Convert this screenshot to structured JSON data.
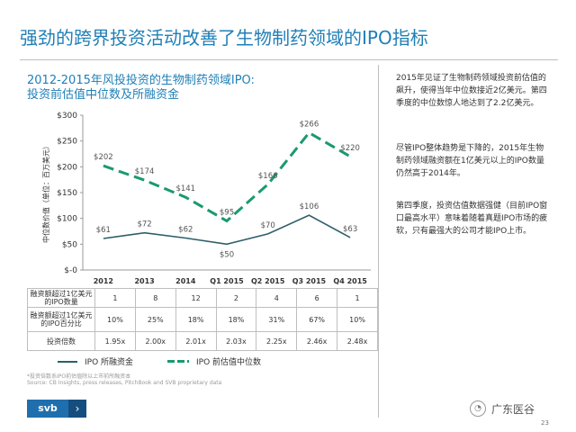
{
  "title": "强劲的跨界投资活动改善了生物制药领域的IPO指标",
  "chart_title_line1": "2012-2015年风投投资的生物制药领域IPO:",
  "chart_title_line2": "投资前估值中位数及所融资金",
  "side_paragraphs": [
    "2015年见证了生物制药领域投资前估值的飙升，使得当年中位数接近2亿美元。第四季度的中位数惊人地达到了2.2亿美元。",
    "尽管IPO整体趋势是下降的，2015年生物制药领域融资额在1亿美元以上的IPO数量仍然高于2014年。",
    "第四季度，投资估值数据强健（目前IPO窗口最高水平）意味着随着真题IPO市场的疲软，只有最强大的公司才能IPO上市。"
  ],
  "table": {
    "rows": [
      {
        "label": "融资额超过1亿美元的IPO数量",
        "values": [
          "1",
          "8",
          "12",
          "2",
          "4",
          "6",
          "1"
        ]
      },
      {
        "label": "融资额超过1亿美元的IPO百分比",
        "values": [
          "10%",
          "25%",
          "18%",
          "18%",
          "31%",
          "67%",
          "10%"
        ]
      },
      {
        "label": "投资倍数",
        "values": [
          "1.95x",
          "2.00x",
          "2.01x",
          "2.03x",
          "2.25x",
          "2.46x",
          "2.48x"
        ]
      }
    ]
  },
  "legend": {
    "series1": "IPO 所融资金",
    "series2": "IPO 前估值中位数"
  },
  "footnote1": "*投资倍数系IPO前估值除以上市前所融资本",
  "footnote2": "Source: CB Insights, press releases, PitchBook and SVB proprietary data",
  "logo_text": "svb",
  "logo_arrow": "›",
  "watermark": "广东医谷",
  "watermark_icon": "wechat-icon",
  "page_number": "23",
  "colors": {
    "title": "#1f7fb6",
    "line_raised": "#2e5e6a",
    "line_valuation": "#1a9a6e",
    "logo": "#1f6fae"
  },
  "chart_data": {
    "type": "line",
    "categories": [
      "2012",
      "2013",
      "2014",
      "Q1 2015",
      "Q2 2015",
      "Q3 2015",
      "Q4 2015"
    ],
    "series": [
      {
        "name": "IPO 前估值中位数",
        "style": "dashed",
        "values": [
          202,
          174,
          141,
          95,
          166,
          266,
          220
        ],
        "labels": [
          "$202",
          "$174",
          "$141",
          "$95",
          "$166",
          "$266",
          "$220"
        ]
      },
      {
        "name": "IPO 所融资金",
        "style": "solid",
        "values": [
          61,
          72,
          62,
          50,
          70,
          106,
          63
        ],
        "labels": [
          "$61",
          "$72",
          "$62",
          "$50",
          "$70",
          "$106",
          "$63"
        ]
      }
    ],
    "ylabel": "中位数价值（单位：百万美元）",
    "ylim": [
      0,
      300
    ],
    "yticks": [
      0,
      50,
      100,
      150,
      200,
      250,
      300
    ],
    "ytick_labels": [
      "$-0",
      "$50",
      "$100",
      "$150",
      "$200",
      "$250",
      "$300"
    ]
  }
}
